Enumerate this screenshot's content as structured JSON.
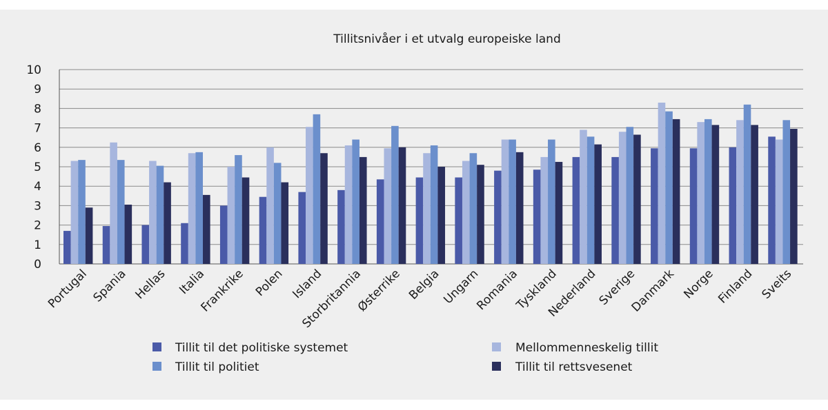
{
  "chart_data": {
    "type": "bar",
    "title": "Tillitsnivåer i et utvalg europeiske land",
    "xlabel": "",
    "ylabel": "",
    "ylim": [
      0,
      10
    ],
    "yticks": [
      "0",
      "1",
      "2",
      "3",
      "4",
      "5",
      "6",
      "7",
      "8",
      "9",
      "10"
    ],
    "grid": true,
    "legend_position": "bottom",
    "categories": [
      "Portugal",
      "Spania",
      "Hellas",
      "Italia",
      "Frankrike",
      "Polen",
      "Island",
      "Storbritannia",
      "Østerrike",
      "Belgia",
      "Ungarn",
      "Romania",
      "Tyskland",
      "Nederland",
      "Sverige",
      "Danmark",
      "Norge",
      "Finland",
      "Sveits"
    ],
    "series": [
      {
        "name": "Tillit til det politiske systemet",
        "color": "#4a5aa8",
        "values": [
          1.7,
          1.95,
          2.0,
          2.1,
          3.0,
          3.45,
          3.7,
          3.8,
          4.35,
          4.45,
          4.45,
          4.8,
          4.85,
          5.5,
          5.5,
          5.95,
          5.95,
          6.0,
          6.55
        ]
      },
      {
        "name": "Mellommenneskelig tillit",
        "color": "#a7b6de",
        "values": [
          5.3,
          6.25,
          5.3,
          5.7,
          5.0,
          6.0,
          7.05,
          6.1,
          5.95,
          5.7,
          5.3,
          6.4,
          5.5,
          6.9,
          6.8,
          8.3,
          7.3,
          7.4,
          6.4
        ]
      },
      {
        "name": "Tillit til politiet",
        "color": "#6b8fcc",
        "values": [
          5.35,
          5.35,
          5.05,
          5.75,
          5.6,
          5.2,
          7.7,
          6.4,
          7.1,
          6.1,
          5.7,
          6.4,
          6.4,
          6.55,
          7.05,
          7.85,
          7.45,
          8.2,
          7.4
        ]
      },
      {
        "name": "Tillit til rettsvesenet",
        "color": "#2a2f5c",
        "values": [
          2.9,
          3.05,
          4.2,
          3.55,
          4.45,
          4.2,
          5.7,
          5.5,
          6.0,
          5.0,
          5.1,
          5.75,
          5.25,
          6.15,
          6.65,
          7.45,
          7.15,
          7.15,
          6.95
        ]
      }
    ]
  }
}
